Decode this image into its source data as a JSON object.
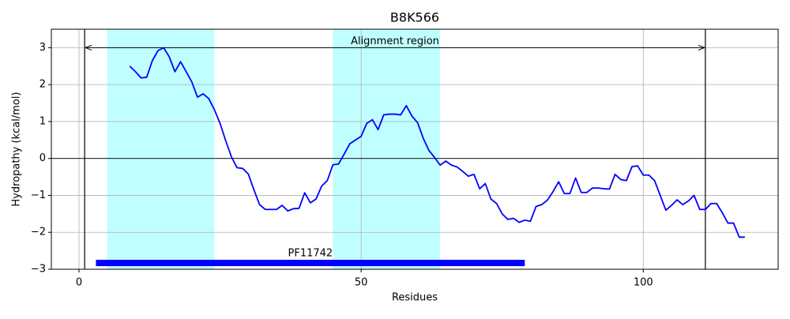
{
  "chart_data": {
    "type": "line",
    "title": "B8K566",
    "x_label": "Residues",
    "y_label": "Hydropathy (kcal/mol)",
    "x": [
      9,
      10,
      11,
      12,
      13,
      14,
      15,
      16,
      17,
      18,
      19,
      20,
      21,
      22,
      23,
      24,
      25,
      26,
      27,
      28,
      29,
      30,
      31,
      32,
      33,
      34,
      35,
      36,
      37,
      38,
      39,
      40,
      41,
      42,
      43,
      44,
      45,
      46,
      47,
      48,
      49,
      50,
      51,
      52,
      53,
      54,
      55,
      56,
      57,
      58,
      59,
      60,
      61,
      62,
      63,
      64,
      65,
      66,
      67,
      68,
      69,
      70,
      71,
      72,
      73,
      74,
      75,
      76,
      77,
      78,
      79,
      80,
      81,
      82,
      83,
      84,
      85,
      86,
      87,
      88,
      89,
      90,
      91,
      92,
      93,
      94,
      95,
      96,
      97,
      98,
      99,
      100,
      101,
      102,
      103,
      104,
      105,
      106,
      107,
      108,
      109,
      110,
      111,
      112,
      113,
      114,
      115,
      116,
      117,
      118
    ],
    "values": [
      2.5,
      2.35,
      2.18,
      2.2,
      2.65,
      2.92,
      3.0,
      2.75,
      2.35,
      2.62,
      2.35,
      2.07,
      1.66,
      1.75,
      1.62,
      1.32,
      0.95,
      0.48,
      0.05,
      -0.25,
      -0.27,
      -0.42,
      -0.85,
      -1.25,
      -1.38,
      -1.38,
      -1.38,
      -1.27,
      -1.42,
      -1.36,
      -1.35,
      -0.93,
      -1.2,
      -1.1,
      -0.75,
      -0.6,
      -0.17,
      -0.15,
      0.12,
      0.4,
      0.5,
      0.6,
      0.95,
      1.05,
      0.78,
      1.18,
      1.2,
      1.2,
      1.18,
      1.43,
      1.15,
      0.97,
      0.55,
      0.22,
      0.03,
      -0.18,
      -0.07,
      -0.18,
      -0.23,
      -0.35,
      -0.48,
      -0.43,
      -0.82,
      -0.68,
      -1.1,
      -1.22,
      -1.5,
      -1.65,
      -1.62,
      -1.73,
      -1.67,
      -1.7,
      -1.3,
      -1.25,
      -1.13,
      -0.9,
      -0.63,
      -0.95,
      -0.95,
      -0.53,
      -0.92,
      -0.92,
      -0.8,
      -0.8,
      -0.82,
      -0.83,
      -0.43,
      -0.57,
      -0.6,
      -0.22,
      -0.2,
      -0.45,
      -0.45,
      -0.6,
      -1.0,
      -1.4,
      -1.27,
      -1.12,
      -1.25,
      -1.15,
      -1.0,
      -1.38,
      -1.38,
      -1.22,
      -1.22,
      -1.47,
      -1.75,
      -1.75,
      -2.13,
      -2.13
    ],
    "color": "#0000ff",
    "xlim": [
      -4.9,
      123.9
    ],
    "ylim": [
      -3,
      3.5
    ],
    "xticks": [
      0,
      50,
      100
    ],
    "yticks": [
      {
        "value": -3,
        "label": "−3"
      },
      {
        "value": -2,
        "label": "−2"
      },
      {
        "value": -1,
        "label": "−1"
      },
      0,
      1,
      2,
      3
    ],
    "grid": true,
    "hline": 0,
    "shaded_regions": [
      {
        "start": 5,
        "end": 24,
        "color": "#c0ffff"
      },
      {
        "start": 45,
        "end": 64,
        "color": "#c0ffff"
      }
    ],
    "vlines": [
      1,
      111
    ],
    "annotations": [
      {
        "text": "Alignment region",
        "start": 1,
        "end": 111,
        "y": 3
      }
    ],
    "domains": [
      {
        "label": "PF11742",
        "start": 3,
        "end": 79,
        "y": -2.83,
        "color": "#0000ff"
      }
    ]
  }
}
